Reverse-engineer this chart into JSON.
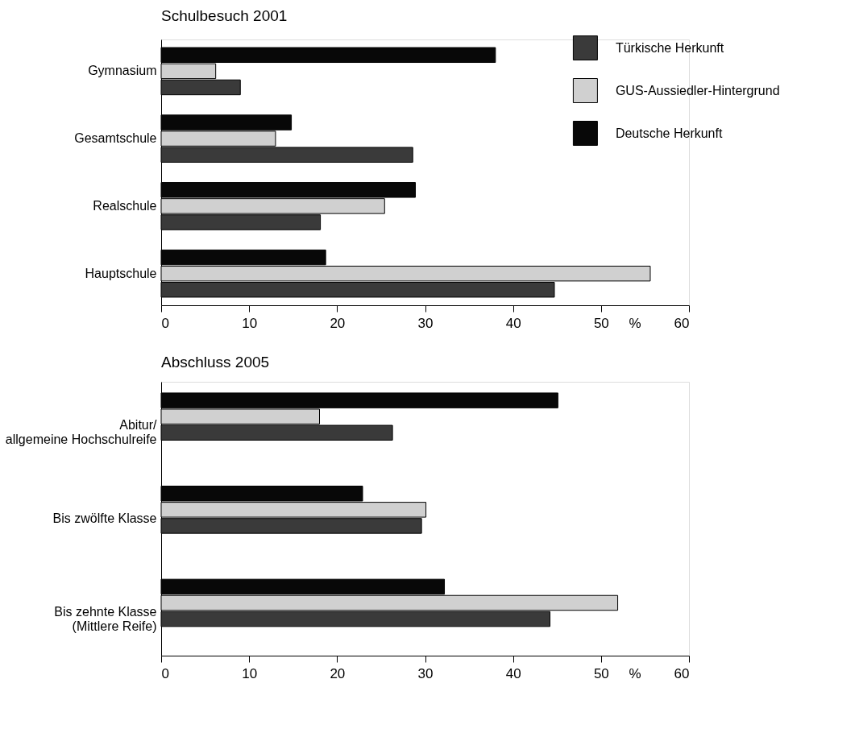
{
  "chart_data": [
    {
      "type": "bar",
      "orientation": "horizontal",
      "title": "Schulbesuch 2001",
      "xlabel": "%",
      "categories": [
        "Gymnasium",
        "Gesamtschule",
        "Realschule",
        "Hauptschule"
      ],
      "series": [
        {
          "name": "Türkische Herkunft",
          "color": "#3a3a3a",
          "values": [
            9.0,
            28.6,
            18.1,
            44.7
          ]
        },
        {
          "name": "GUS-Aussiedler-Hintergrund",
          "color": "#d0d0d0",
          "values": [
            6.2,
            13.0,
            25.4,
            55.6
          ]
        },
        {
          "name": "Deutsche Herkunft",
          "color": "#080808",
          "values": [
            38.0,
            14.8,
            28.9,
            18.7
          ]
        }
      ],
      "xlim": [
        0,
        60
      ],
      "xticks": [
        0,
        10,
        20,
        30,
        40,
        50,
        60
      ],
      "legend": "top right",
      "grid": false
    },
    {
      "type": "bar",
      "orientation": "horizontal",
      "title": "Abschluss 2005",
      "xlabel": "%",
      "categories": [
        "Abitur/\nallgemeine Hochschulreife",
        "Bis zwölfte Klasse",
        "Bis zehnte Klasse\n(Mittlere Reife)"
      ],
      "series": [
        {
          "color": "#3a3a3a",
          "values": [
            26.3,
            29.6,
            44.2
          ]
        },
        {
          "color": "#d0d0d0",
          "values": [
            18.0,
            30.1,
            51.9
          ]
        },
        {
          "color": "#080808",
          "values": [
            45.1,
            22.9,
            32.2
          ]
        }
      ],
      "xlim": [
        0,
        60
      ],
      "xticks": [
        0,
        10,
        20,
        30,
        40,
        50,
        60
      ],
      "legend": false,
      "grid": false
    }
  ]
}
